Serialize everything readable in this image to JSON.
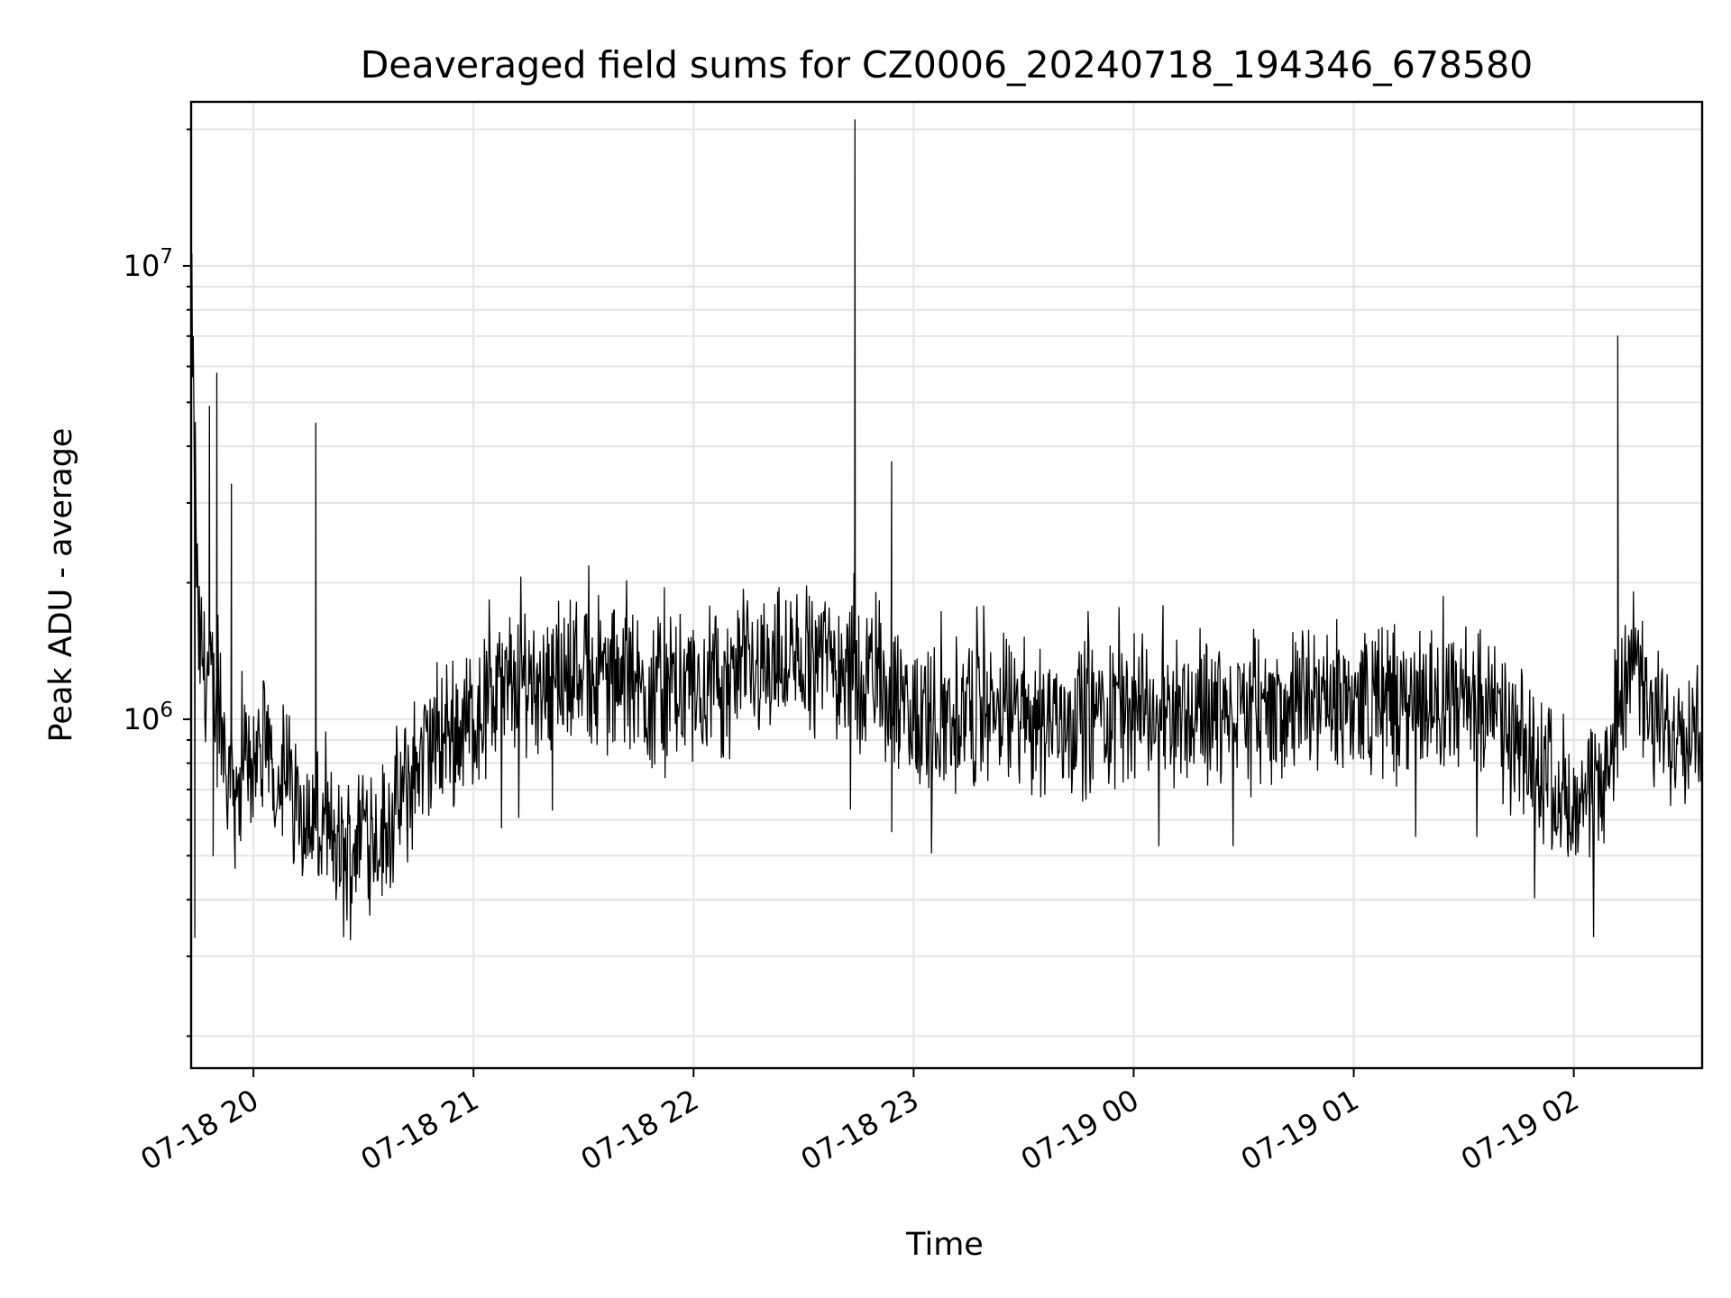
{
  "chart_data": {
    "type": "line",
    "title": "Deaveraged field sums for CZ0006_20240718_194346_678580",
    "xlabel": "Time",
    "ylabel": "Peak ADU - average",
    "y_scale": "log",
    "ylim": [
      170000,
      23000000
    ],
    "xlim": [
      "2024-07-18 19:43",
      "2024-07-19 02:35"
    ],
    "grid": true,
    "color": "#000000",
    "x_ticks": [
      {
        "x": "2024-07-18 20:00",
        "label": "07-18 20"
      },
      {
        "x": "2024-07-18 21:00",
        "label": "07-18 21"
      },
      {
        "x": "2024-07-18 22:00",
        "label": "07-18 22"
      },
      {
        "x": "2024-07-18 23:00",
        "label": "07-18 23"
      },
      {
        "x": "2024-07-19 00:00",
        "label": "07-19 00"
      },
      {
        "x": "2024-07-19 01:00",
        "label": "07-19 01"
      },
      {
        "x": "2024-07-19 02:00",
        "label": "07-19 02"
      }
    ],
    "y_ticks": [
      {
        "value": 1000000,
        "base": "10",
        "exp": "6"
      },
      {
        "value": 10000000,
        "base": "10",
        "exp": "7"
      }
    ],
    "series": [
      {
        "x": [
          "2024-07-18 19:43",
          "2024-07-18 19:44",
          "2024-07-18 19:45",
          "2024-07-18 19:48",
          "2024-07-18 19:49",
          "2024-07-18 19:50",
          "2024-07-18 19:51",
          "2024-07-18 19:54",
          "2024-07-18 19:55",
          "2024-07-18 20:00",
          "2024-07-18 20:05",
          "2024-07-18 20:09",
          "2024-07-18 20:15",
          "2024-07-18 20:17",
          "2024-07-18 20:20",
          "2024-07-18 20:25",
          "2024-07-18 20:30",
          "2024-07-18 20:35",
          "2024-07-18 20:40",
          "2024-07-18 20:45",
          "2024-07-18 20:50",
          "2024-07-18 20:55",
          "2024-07-18 21:00",
          "2024-07-18 21:10",
          "2024-07-18 21:20",
          "2024-07-18 21:30",
          "2024-07-18 21:40",
          "2024-07-18 21:50",
          "2024-07-18 22:00",
          "2024-07-18 22:10",
          "2024-07-18 22:17",
          "2024-07-18 22:25",
          "2024-07-18 22:36",
          "2024-07-18 22:40",
          "2024-07-18 22:44",
          "2024-07-18 22:45",
          "2024-07-18 22:50",
          "2024-07-18 22:54",
          "2024-07-18 22:56",
          "2024-07-18 23:00",
          "2024-07-18 23:20",
          "2024-07-18 23:40",
          "2024-07-19 00:00",
          "2024-07-19 00:20",
          "2024-07-19 00:40",
          "2024-07-19 01:00",
          "2024-07-19 01:20",
          "2024-07-19 01:35",
          "2024-07-19 01:45",
          "2024-07-19 01:55",
          "2024-07-19 02:00",
          "2024-07-19 02:05",
          "2024-07-19 02:10",
          "2024-07-19 02:12",
          "2024-07-19 02:15",
          "2024-07-19 02:20",
          "2024-07-19 02:25",
          "2024-07-19 02:30",
          "2024-07-19 02:35"
        ],
        "y": [
          8700000,
          330000,
          1500000,
          4900000,
          500000,
          5800000,
          1400000,
          3300000,
          700000,
          850000,
          800000,
          750000,
          600000,
          4500000,
          550000,
          480000,
          600000,
          550000,
          650000,
          800000,
          900000,
          950000,
          1000000,
          1200000,
          1250000,
          1300000,
          1200000,
          1150000,
          1150000,
          1200000,
          1350000,
          1300000,
          1400000,
          1350000,
          21000000,
          1200000,
          1300000,
          3700000,
          1050000,
          1000000,
          1050000,
          1000000,
          1050000,
          1050000,
          1050000,
          1100000,
          1100000,
          1100000,
          850000,
          750000,
          600000,
          650000,
          800000,
          7000000,
          1500000,
          1000000,
          950000,
          1000000,
          950000
        ]
      }
    ]
  }
}
